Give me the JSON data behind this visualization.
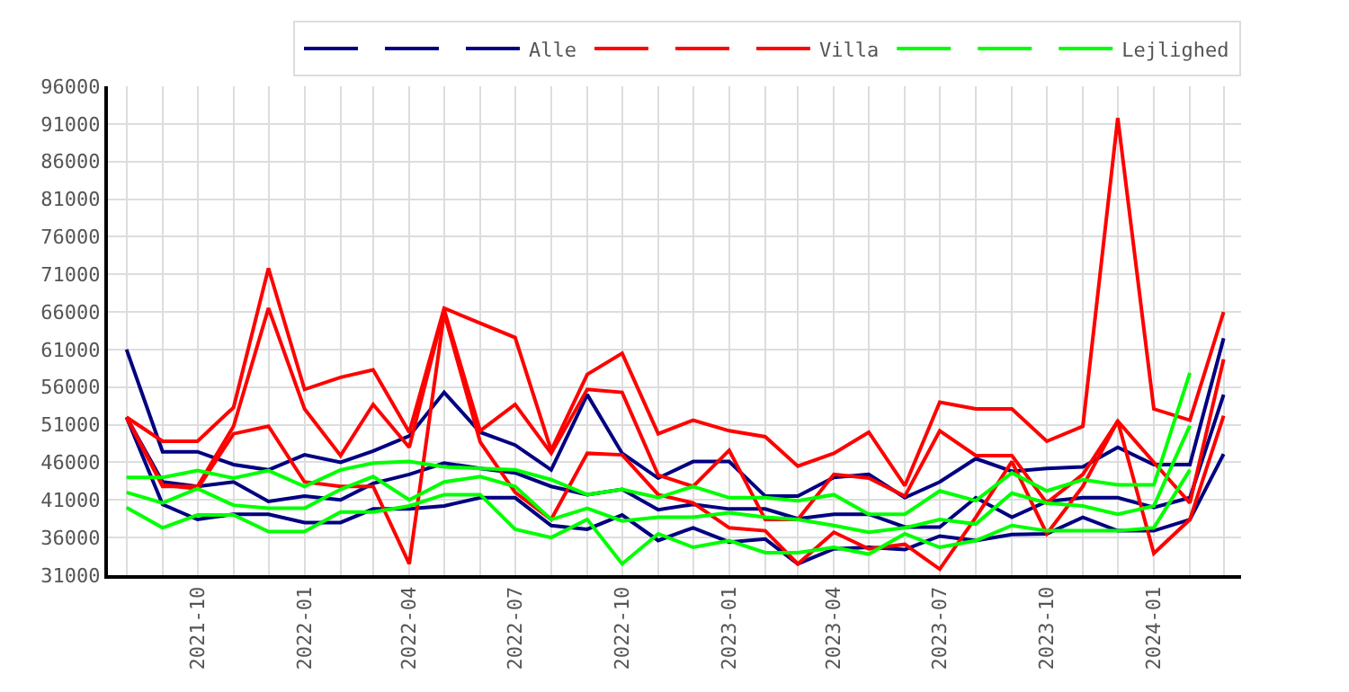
{
  "chart_data": {
    "type": "line",
    "x": [
      "2021-08",
      "2021-09",
      "2021-10",
      "2021-11",
      "2021-12",
      "2022-01",
      "2022-02",
      "2022-03",
      "2022-04",
      "2022-05",
      "2022-06",
      "2022-07",
      "2022-08",
      "2022-09",
      "2022-10",
      "2022-11",
      "2022-12",
      "2023-01",
      "2023-02",
      "2023-03",
      "2023-04",
      "2023-05",
      "2023-06",
      "2023-07",
      "2023-08",
      "2023-09",
      "2023-10",
      "2023-11",
      "2023-12",
      "2024-01",
      "2024-02",
      "2024-03"
    ],
    "series": [
      {
        "color": "#000080",
        "values": [
          61000,
          47400,
          47400,
          45700,
          45000,
          47000,
          46000,
          47500,
          49500,
          55300,
          50000,
          48300,
          45000,
          55000,
          47200,
          43900,
          46100,
          46100,
          41500,
          41500,
          44000,
          44400,
          41300,
          43400,
          46500,
          44800,
          45200,
          45400,
          48000,
          45700,
          45700,
          62500
        ]
      },
      {
        "color": "#000080",
        "values": [
          52000,
          43400,
          42800,
          43400,
          40800,
          41500,
          41000,
          43200,
          44400,
          45900,
          45200,
          44600,
          42800,
          41700,
          42400,
          39700,
          40400,
          39800,
          39800,
          38500,
          39100,
          39100,
          37400,
          37400,
          41300,
          38700,
          40800,
          41300,
          41300,
          40000,
          41300,
          55000
        ]
      },
      {
        "name": "Alle",
        "color": "#000080",
        "values": [
          52000,
          40400,
          38400,
          39100,
          39100,
          38000,
          38000,
          39800,
          39800,
          40200,
          41300,
          41300,
          37600,
          37100,
          39000,
          35600,
          37300,
          35400,
          35800,
          32500,
          34500,
          34700,
          34400,
          36200,
          35600,
          36400,
          36500,
          38700,
          36900,
          36900,
          38400,
          47100
        ]
      },
      {
        "color": "#ff0000",
        "values": [
          52000,
          48800,
          48800,
          53300,
          71800,
          55700,
          57300,
          58300,
          50000,
          66500,
          64500,
          62600,
          47600,
          57700,
          60500,
          49800,
          51600,
          50200,
          49400,
          45500,
          47200,
          50000,
          42900,
          54000,
          53100,
          53100,
          48800,
          50800,
          91800,
          53100,
          51600,
          66000
        ]
      },
      {
        "color": "#ff0000",
        "values": [
          52000,
          42800,
          42800,
          50800,
          66500,
          53100,
          46900,
          53700,
          48000,
          66300,
          50200,
          53700,
          47200,
          55700,
          55300,
          44300,
          42800,
          47600,
          38400,
          38400,
          44400,
          43900,
          41500,
          50200,
          46900,
          46900,
          40600,
          44400,
          51500,
          46000,
          40600,
          59700
        ]
      },
      {
        "name": "Villa",
        "color": "#ff0000",
        "values": [
          52000,
          43000,
          42500,
          49800,
          50800,
          43400,
          42800,
          42800,
          32500,
          65800,
          48700,
          42000,
          38400,
          47200,
          47000,
          41700,
          40600,
          37300,
          36900,
          32500,
          36700,
          34500,
          35100,
          31800,
          38700,
          46100,
          36500,
          42800,
          51500,
          33900,
          38400,
          52200
        ]
      },
      {
        "color": "#00ff00",
        "values": [
          44000,
          44000,
          44900,
          43900,
          44900,
          42800,
          45000,
          45900,
          46100,
          45400,
          45200,
          45000,
          43700,
          41700,
          42400,
          41300,
          42800,
          41300,
          41300,
          40900,
          41700,
          39100,
          39100,
          42200,
          40900,
          44600,
          42200,
          43700,
          43000,
          43000,
          57900,
          null
        ]
      },
      {
        "color": "#00ff00",
        "values": [
          42000,
          40600,
          42500,
          40300,
          39900,
          39900,
          42400,
          44100,
          41000,
          43400,
          44100,
          42800,
          38400,
          39900,
          38200,
          38700,
          38700,
          39300,
          38700,
          38400,
          37600,
          36700,
          37300,
          38400,
          37800,
          41900,
          40600,
          40200,
          39100,
          40200,
          50900,
          null
        ]
      },
      {
        "name": "Lejlighed",
        "color": "#00ff00",
        "values": [
          40000,
          37300,
          39000,
          39000,
          36800,
          36800,
          39400,
          39400,
          40200,
          41700,
          41700,
          37100,
          36000,
          38400,
          32500,
          36500,
          34700,
          35600,
          34000,
          34000,
          34700,
          33800,
          36500,
          34700,
          35600,
          37600,
          36900,
          36900,
          36900,
          37300,
          45000,
          null
        ]
      }
    ],
    "xlim": [
      "2021-07-16",
      "2024-03-16"
    ],
    "xticks": [
      "2021-10",
      "2022-01",
      "2022-04",
      "2022-07",
      "2022-10",
      "2023-01",
      "2023-04",
      "2023-07",
      "2023-10",
      "2024-01"
    ],
    "ylim": [
      31000,
      96000
    ],
    "yticks": [
      31000,
      36000,
      41000,
      46000,
      51000,
      56000,
      61000,
      66000,
      71000,
      76000,
      81000,
      86000,
      91000,
      96000
    ],
    "grid": true,
    "legend": "top right",
    "marker": "none",
    "line_style": "solid"
  }
}
